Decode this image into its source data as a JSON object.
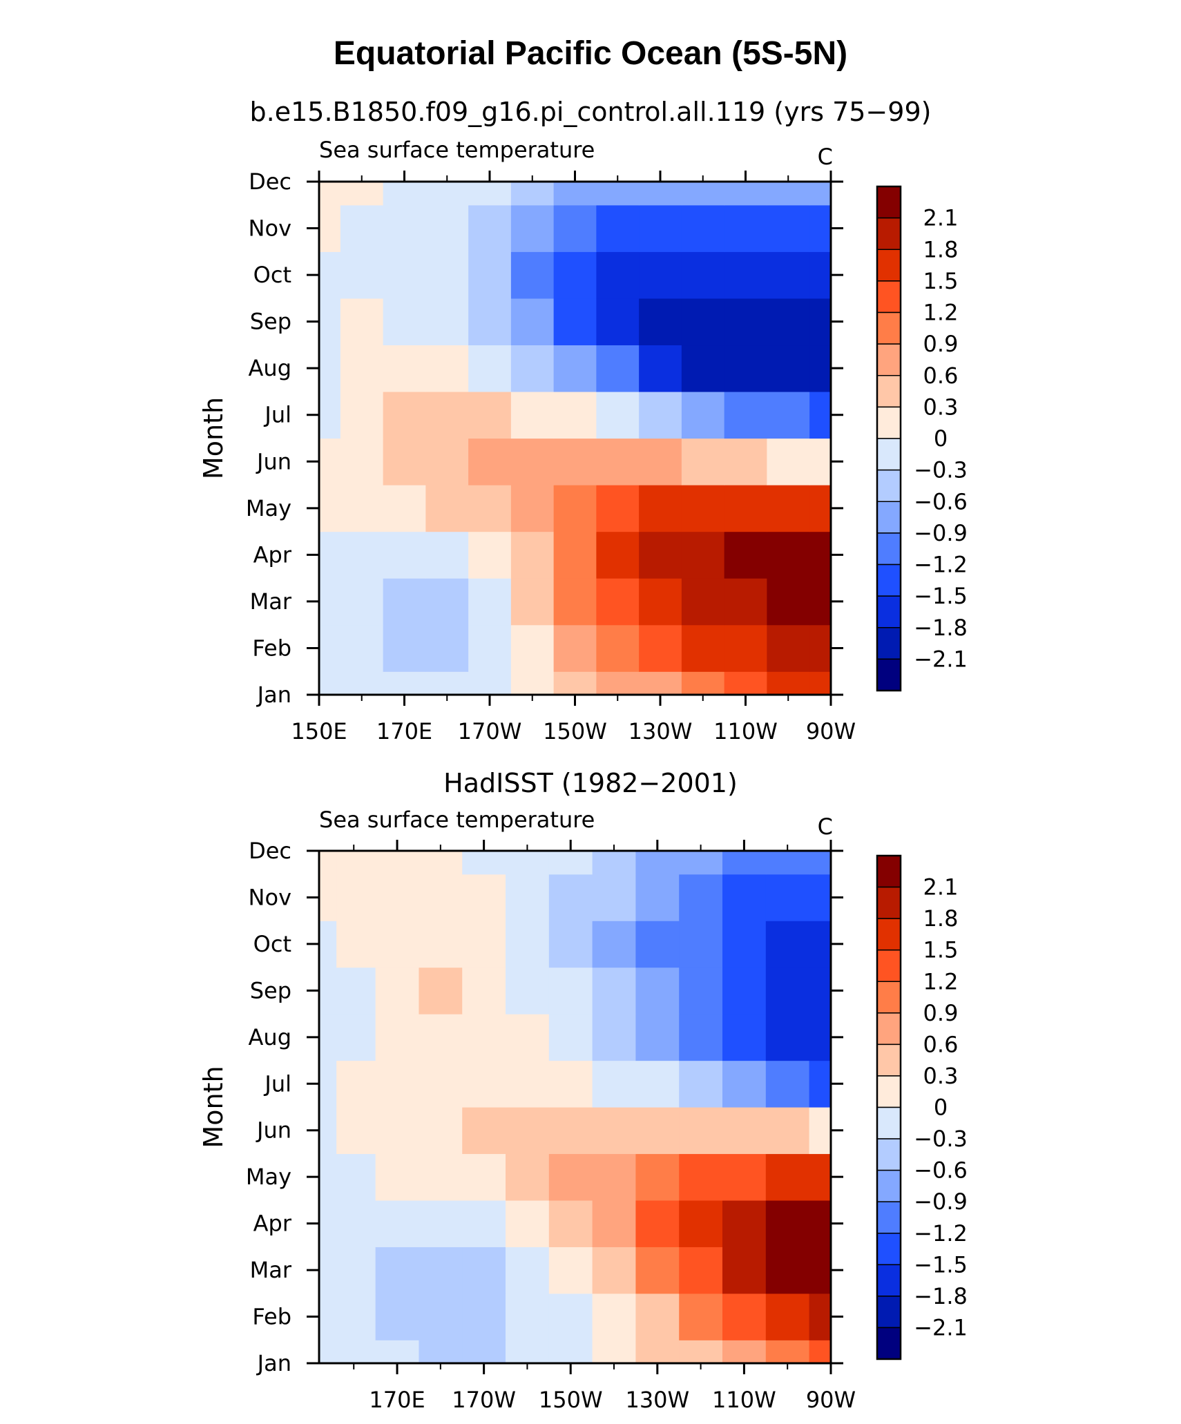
{
  "figure": {
    "title": "Equatorial Pacific Ocean (5S-5N)"
  },
  "colorbar": {
    "levels": [
      -2.1,
      -1.8,
      -1.5,
      -1.2,
      -0.9,
      -0.6,
      -0.3,
      0,
      0.3,
      0.6,
      0.9,
      1.2,
      1.5,
      1.8,
      2.1
    ],
    "labels": [
      "2.1",
      "1.8",
      "1.5",
      "1.2",
      "0.9",
      "0.6",
      "0.3",
      "0",
      "−0.3",
      "−0.6",
      "−0.9",
      "−1.2",
      "−1.5",
      "−1.8",
      "−2.1"
    ],
    "colors_top_to_bottom": [
      "#840000",
      "#b81b00",
      "#e13100",
      "#ff5422",
      "#ff7d48",
      "#ffa47e",
      "#ffc7a8",
      "#ffebdb",
      "#d9e8fc",
      "#b3ccff",
      "#84a8ff",
      "#4f7dff",
      "#1f50ff",
      "#0a2fe0",
      "#001bb2",
      "#00007f"
    ]
  },
  "months": [
    "Jan",
    "Feb",
    "Mar",
    "Apr",
    "May",
    "Jun",
    "Jul",
    "Aug",
    "Sep",
    "Oct",
    "Nov",
    "Dec"
  ],
  "chart_data": [
    {
      "type": "heatmap",
      "subtitle": "b.e15.B1850.f09_g16.pi_control.all.119 (yrs 75−99)",
      "left_string": "Sea surface temperature",
      "right_string": "C",
      "ylabel": "Month",
      "xlabel": "",
      "x_tick_labels": [
        "150E",
        "170E",
        "170W",
        "150W",
        "130W",
        "110W",
        "90W"
      ],
      "x_tick_lon": [
        150,
        170,
        190,
        210,
        230,
        250,
        270
      ],
      "xlim": [
        150,
        270
      ],
      "y_tick_labels": [
        "Jan",
        "Feb",
        "Mar",
        "Apr",
        "May",
        "Jun",
        "Jul",
        "Aug",
        "Sep",
        "Oct",
        "Nov",
        "Dec"
      ],
      "ylim": [
        "Jan",
        "Dec"
      ],
      "columns_lon": [
        150,
        160,
        170,
        180,
        190,
        200,
        210,
        220,
        230,
        240,
        250,
        260,
        270
      ],
      "rows_month": [
        "Jan",
        "Feb",
        "Mar",
        "Apr",
        "May",
        "Jun",
        "Jul",
        "Aug",
        "Sep",
        "Oct",
        "Nov",
        "Dec"
      ],
      "values": [
        [
          -0.2,
          -0.2,
          -0.3,
          -0.3,
          -0.1,
          0.0,
          0.3,
          0.6,
          0.8,
          1.0,
          1.3,
          1.5,
          1.6
        ],
        [
          -0.2,
          -0.3,
          -0.5,
          -0.4,
          -0.2,
          0.2,
          0.6,
          1.0,
          1.2,
          1.5,
          1.7,
          1.9,
          1.9
        ],
        [
          -0.2,
          -0.3,
          -0.6,
          -0.4,
          -0.1,
          0.3,
          0.9,
          1.3,
          1.6,
          1.8,
          2.0,
          2.1,
          2.1
        ],
        [
          -0.1,
          -0.1,
          -0.2,
          -0.1,
          0.1,
          0.5,
          1.1,
          1.5,
          1.8,
          2.0,
          2.1,
          2.2,
          2.3
        ],
        [
          0.0,
          0.1,
          0.1,
          0.3,
          0.5,
          0.7,
          1.1,
          1.4,
          1.6,
          1.7,
          1.7,
          1.6,
          1.5
        ],
        [
          0.0,
          0.2,
          0.3,
          0.5,
          0.6,
          0.8,
          0.8,
          0.8,
          0.7,
          0.5,
          0.3,
          0.1,
          0.1
        ],
        [
          -0.1,
          0.1,
          0.3,
          0.4,
          0.3,
          0.2,
          0.0,
          -0.2,
          -0.5,
          -0.8,
          -1.0,
          -1.2,
          -1.3
        ],
        [
          -0.1,
          0.1,
          0.1,
          0.0,
          -0.2,
          -0.5,
          -0.8,
          -1.2,
          -1.6,
          -1.9,
          -2.0,
          -2.0,
          -2.0
        ],
        [
          -0.1,
          0.0,
          -0.1,
          -0.3,
          -0.5,
          -0.9,
          -1.3,
          -1.6,
          -1.9,
          -2.1,
          -2.0,
          -1.9,
          -1.9
        ],
        [
          -0.1,
          -0.1,
          -0.2,
          -0.3,
          -0.6,
          -1.0,
          -1.3,
          -1.6,
          -1.8,
          -1.8,
          -1.8,
          -1.7,
          -1.7
        ],
        [
          0.0,
          -0.1,
          -0.1,
          -0.2,
          -0.4,
          -0.7,
          -1.0,
          -1.3,
          -1.4,
          -1.4,
          -1.4,
          -1.4,
          -1.4
        ],
        [
          0.1,
          0.0,
          -0.1,
          -0.1,
          -0.2,
          -0.5,
          -0.7,
          -0.9,
          -0.8,
          -0.8,
          -0.8,
          -0.8,
          -0.8
        ]
      ]
    },
    {
      "type": "heatmap",
      "subtitle": "HadISST (1982−2001)",
      "left_string": "Sea surface temperature",
      "right_string": "C",
      "ylabel": "Month",
      "xlabel": "",
      "x_tick_labels": [
        "170E",
        "170W",
        "150W",
        "130W",
        "110W",
        "90W"
      ],
      "x_tick_lon": [
        170,
        190,
        210,
        230,
        250,
        270
      ],
      "xlim": [
        152,
        270
      ],
      "y_tick_labels": [
        "Jan",
        "Feb",
        "Mar",
        "Apr",
        "May",
        "Jun",
        "Jul",
        "Aug",
        "Sep",
        "Oct",
        "Nov",
        "Dec"
      ],
      "ylim": [
        "Jan",
        "Dec"
      ],
      "columns_lon": [
        152,
        160,
        170,
        180,
        190,
        200,
        210,
        220,
        230,
        240,
        250,
        260,
        270
      ],
      "rows_month": [
        "Jan",
        "Feb",
        "Mar",
        "Apr",
        "May",
        "Jun",
        "Jul",
        "Aug",
        "Sep",
        "Oct",
        "Nov",
        "Dec"
      ],
      "values": [
        [
          -0.1,
          -0.2,
          -0.3,
          -0.4,
          -0.4,
          -0.3,
          -0.1,
          0.1,
          0.3,
          0.5,
          0.7,
          0.9,
          1.2
        ],
        [
          -0.2,
          -0.3,
          -0.4,
          -0.5,
          -0.4,
          -0.3,
          -0.1,
          0.2,
          0.5,
          0.9,
          1.2,
          1.6,
          1.9
        ],
        [
          -0.2,
          -0.3,
          -0.5,
          -0.5,
          -0.4,
          -0.2,
          0.1,
          0.5,
          0.9,
          1.4,
          1.9,
          2.3,
          2.5
        ],
        [
          -0.2,
          -0.2,
          -0.3,
          -0.3,
          -0.1,
          0.1,
          0.4,
          0.8,
          1.2,
          1.6,
          2.0,
          2.3,
          2.5
        ],
        [
          -0.1,
          -0.1,
          0.0,
          0.0,
          0.2,
          0.4,
          0.6,
          0.8,
          1.0,
          1.2,
          1.4,
          1.5,
          1.5
        ],
        [
          -0.1,
          0.0,
          0.1,
          0.2,
          0.3,
          0.4,
          0.5,
          0.5,
          0.5,
          0.5,
          0.4,
          0.3,
          0.2
        ],
        [
          -0.1,
          0.0,
          0.1,
          0.1,
          0.2,
          0.1,
          0.0,
          -0.1,
          -0.3,
          -0.5,
          -0.8,
          -1.1,
          -1.3
        ],
        [
          -0.3,
          -0.1,
          0.1,
          0.2,
          0.1,
          0.0,
          -0.2,
          -0.4,
          -0.7,
          -1.0,
          -1.4,
          -1.6,
          -1.8
        ],
        [
          -0.2,
          -0.1,
          0.2,
          0.3,
          0.1,
          -0.1,
          -0.3,
          -0.6,
          -0.9,
          -1.2,
          -1.5,
          -1.7,
          -1.8
        ],
        [
          -0.1,
          0.0,
          0.1,
          0.1,
          0.0,
          -0.2,
          -0.4,
          -0.7,
          -1.0,
          -1.2,
          -1.4,
          -1.6,
          -1.7
        ],
        [
          0.0,
          0.1,
          0.1,
          0.1,
          0.0,
          -0.2,
          -0.4,
          -0.6,
          -0.8,
          -1.1,
          -1.3,
          -1.4,
          -1.5
        ],
        [
          0.1,
          0.1,
          0.1,
          0.0,
          -0.1,
          -0.2,
          -0.3,
          -0.5,
          -0.7,
          -0.9,
          -1.1,
          -1.1,
          -1.0
        ]
      ]
    }
  ]
}
